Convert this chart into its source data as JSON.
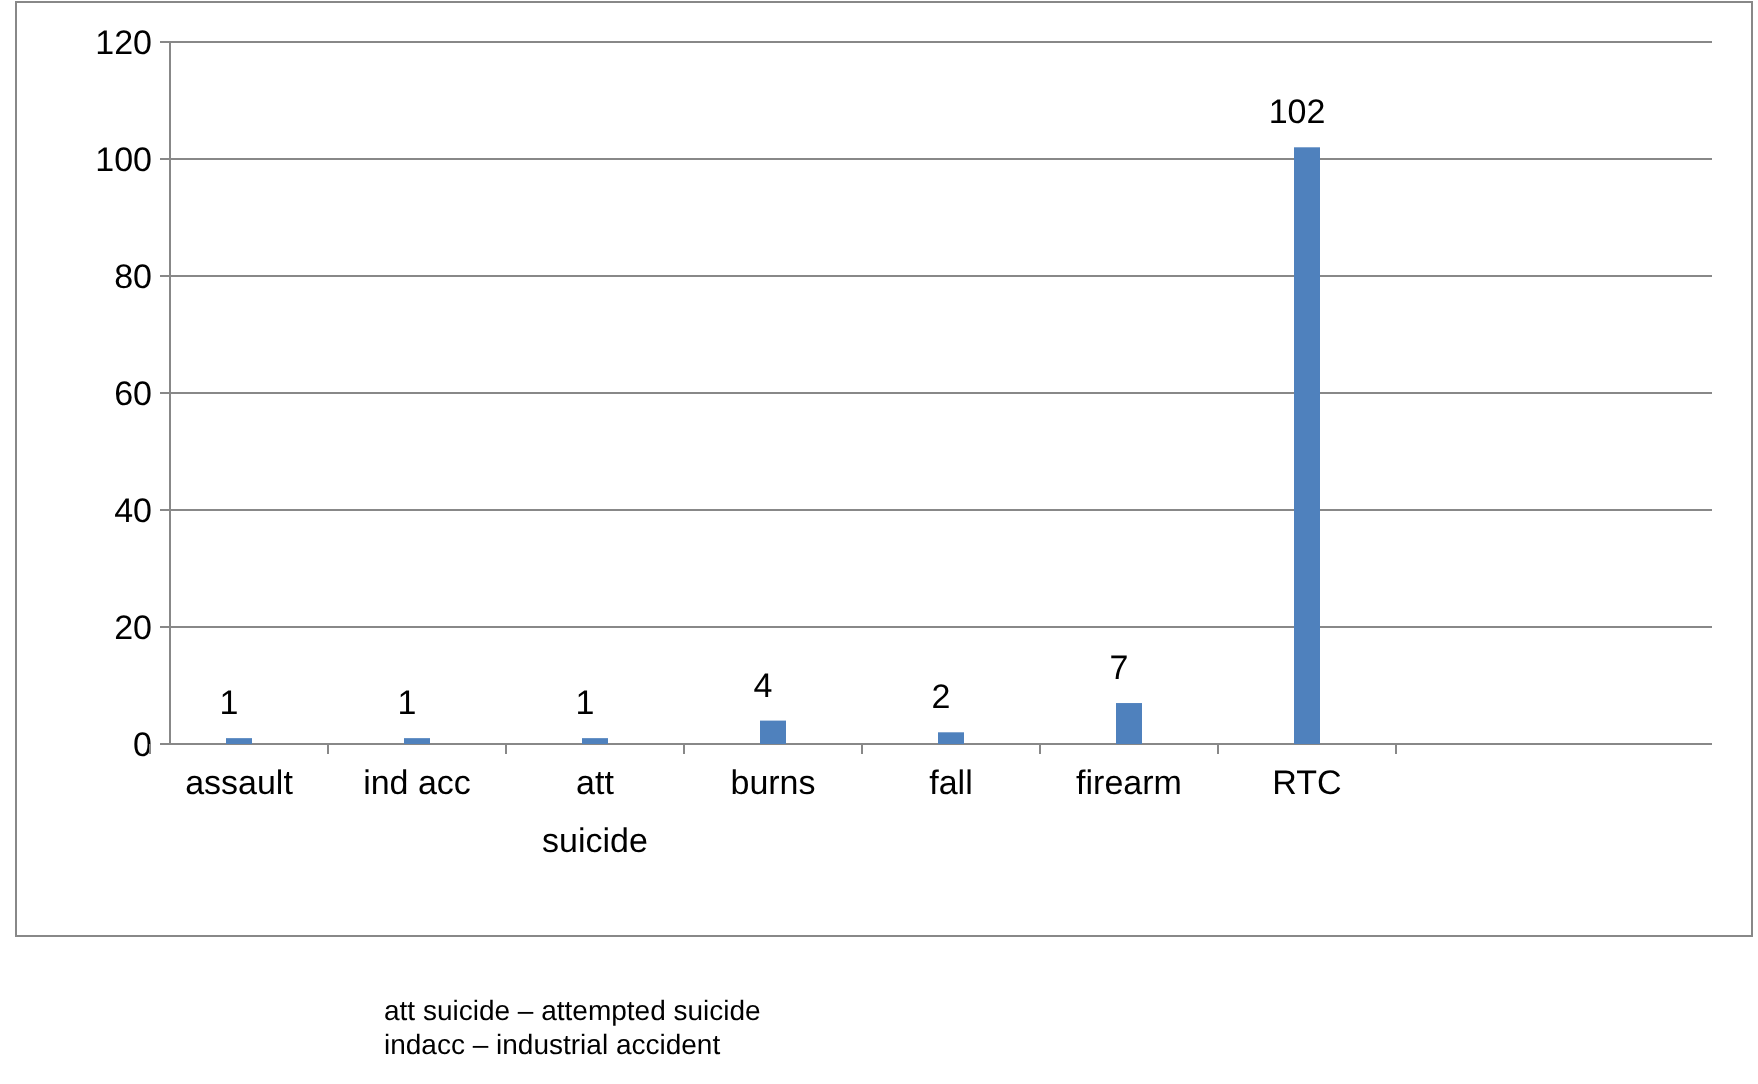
{
  "chart_data": {
    "type": "bar",
    "categories": [
      "assault",
      "ind acc",
      "att suicide",
      "burns",
      "fall",
      "firearm",
      "RTC"
    ],
    "values": [
      1,
      1,
      1,
      4,
      2,
      7,
      102
    ],
    "color": "#4f81bd",
    "ylim": [
      0,
      120
    ],
    "yticks": [
      0,
      20,
      40,
      60,
      80,
      100,
      120
    ],
    "grid": "y",
    "data_labels": true,
    "annotations": [
      "att suicide – attempted suicide",
      "indacc – industrial accident"
    ]
  }
}
